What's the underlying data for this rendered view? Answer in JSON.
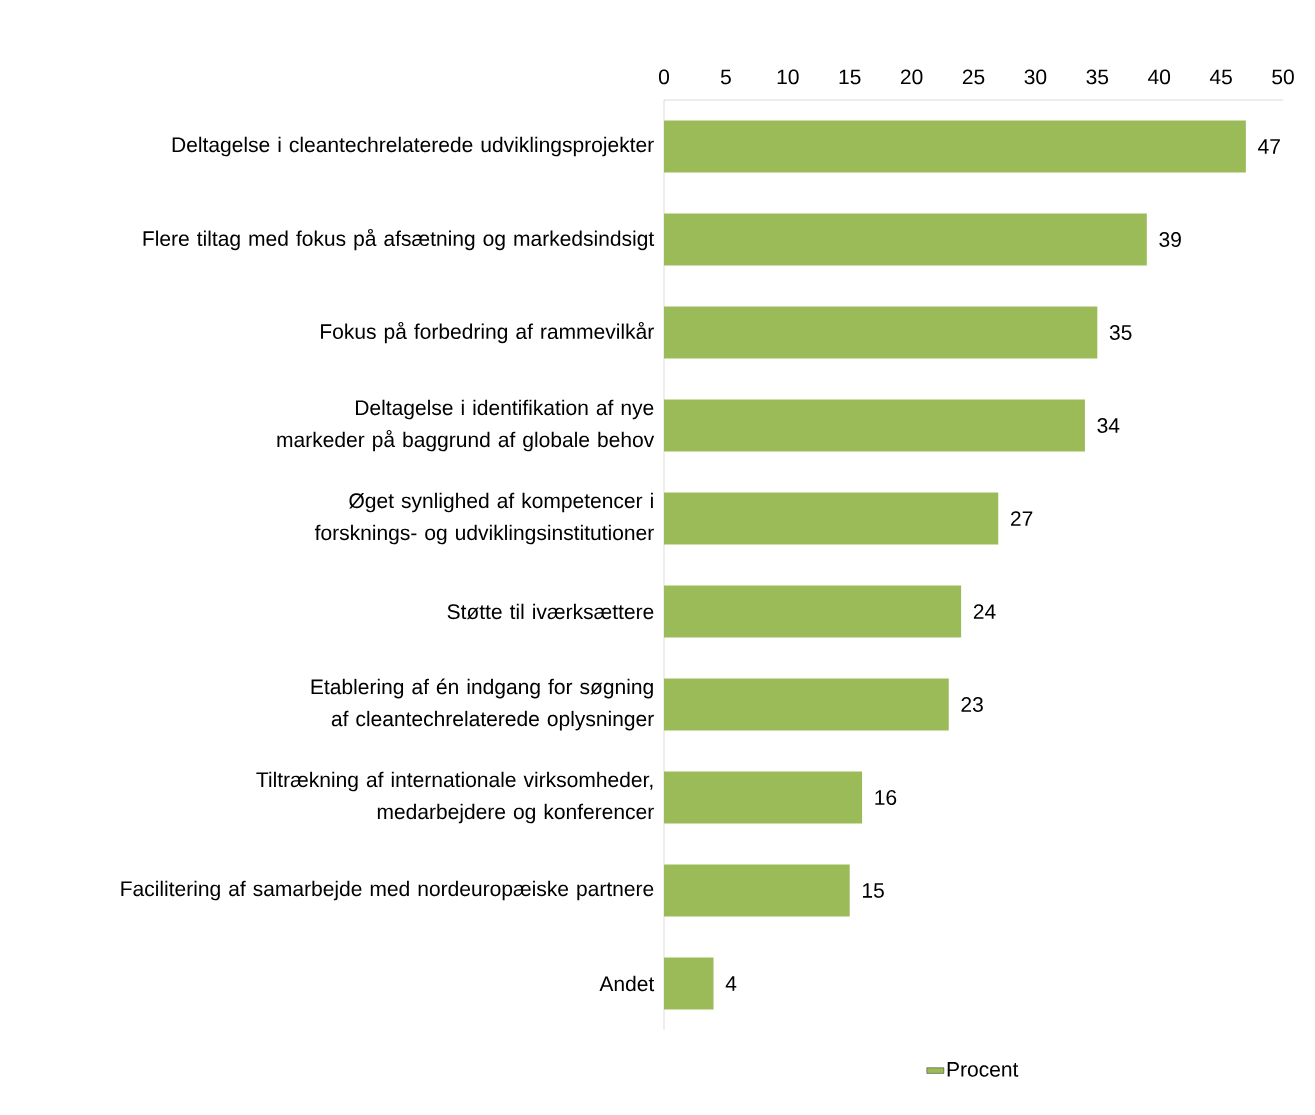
{
  "chart_data": {
    "type": "bar",
    "orientation": "horizontal",
    "categories": [
      "Deltagelse i cleantechrelaterede udviklingsprojekter",
      "Flere tiltag med fokus på afsætning og markedsindsigt",
      "Fokus på forbedring af rammevilkår",
      "Deltagelse i identifikation af nye markeder på baggrund af globale behov",
      "Øget synlighed af kompetencer i forsknings- og udviklingsinstitutioner",
      "Støtte til iværksættere",
      "Etablering af én indgang for søgning af cleantechrelaterede oplysninger",
      "Tiltrækning af internationale virksomheder, medarbejdere og konferencer",
      "Facilitering af samarbejde med nordeuropæiske partnere",
      "Andet"
    ],
    "series": [
      {
        "name": "Procent",
        "color": "#9bbb59",
        "values": [
          47,
          39,
          35,
          34,
          27,
          24,
          23,
          16,
          15,
          4
        ]
      }
    ],
    "xlim": [
      0,
      50
    ],
    "xticks": [
      0,
      5,
      10,
      15,
      20,
      25,
      30,
      35,
      40,
      45,
      50
    ],
    "data_labels": true,
    "legend": "bottom",
    "grid": false
  }
}
